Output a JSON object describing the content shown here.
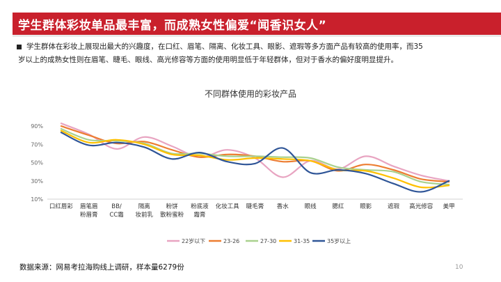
{
  "page": {
    "title": "学生群体彩妆单品最丰富，而成熟女性偏爱“闻香识女人”",
    "bullet_line1": "学生群体在彩妆上展现出最大的兴趣度，在口红、眉笔、隔离、化妆工具、眼影、遮瑕等多方面产品有较高的使用率，而35",
    "bullet_line2": "岁以上的成熟女性则在眉笔、睫毛、眼线、高光修容等方面的使用明显低于年轻群体，但对于香水的偏好度明显提升。",
    "source": "数据来源：网易考拉海购线上调研，样本量6279份",
    "page_number": "10"
  },
  "chart_data": {
    "type": "line",
    "title": "不同群体使用的彩妆产品",
    "categories": [
      [
        "口红唇彩"
      ],
      [
        "眉笔眉",
        "粉眉膏"
      ],
      [
        "BB/",
        "CC霜"
      ],
      [
        "隔离",
        "妆前乳"
      ],
      [
        "粉饼",
        "散粉蜜粉"
      ],
      [
        "粉底液",
        "霜膏"
      ],
      [
        "化妆工具"
      ],
      [
        "睫毛膏"
      ],
      [
        "香水"
      ],
      [
        "眼线"
      ],
      [
        "腮红"
      ],
      [
        "眼影"
      ],
      [
        "遮瑕"
      ],
      [
        "高光修容"
      ],
      [
        "美甲"
      ]
    ],
    "y_ticks": [
      "10%",
      "30%",
      "50%",
      "70%",
      "90%"
    ],
    "ylim": [
      0.1,
      1.0
    ],
    "smooth": true,
    "legend_position": "bottom",
    "series": [
      {
        "name": "22岁以下",
        "color": "#e8a4c1",
        "values": [
          0.93,
          0.81,
          0.65,
          0.78,
          0.68,
          0.56,
          0.64,
          0.55,
          0.34,
          0.52,
          0.43,
          0.57,
          0.46,
          0.36,
          0.3
        ]
      },
      {
        "name": "23-26",
        "color": "#ed7d31",
        "values": [
          0.9,
          0.8,
          0.71,
          0.73,
          0.64,
          0.56,
          0.59,
          0.57,
          0.51,
          0.52,
          0.41,
          0.48,
          0.42,
          0.32,
          0.29
        ]
      },
      {
        "name": "27-30",
        "color": "#a9d18e",
        "values": [
          0.87,
          0.75,
          0.74,
          0.71,
          0.6,
          0.6,
          0.57,
          0.57,
          0.56,
          0.55,
          0.45,
          0.42,
          0.4,
          0.29,
          0.26
        ]
      },
      {
        "name": "31-35",
        "color": "#ffc000",
        "values": [
          0.85,
          0.72,
          0.75,
          0.7,
          0.59,
          0.58,
          0.53,
          0.55,
          0.54,
          0.52,
          0.42,
          0.41,
          0.33,
          0.23,
          0.25
        ]
      },
      {
        "name": "35岁以上",
        "color": "#2f5597",
        "values": [
          0.83,
          0.69,
          0.72,
          0.67,
          0.54,
          0.61,
          0.51,
          0.49,
          0.66,
          0.39,
          0.42,
          0.38,
          0.27,
          0.18,
          0.3
        ]
      }
    ]
  }
}
